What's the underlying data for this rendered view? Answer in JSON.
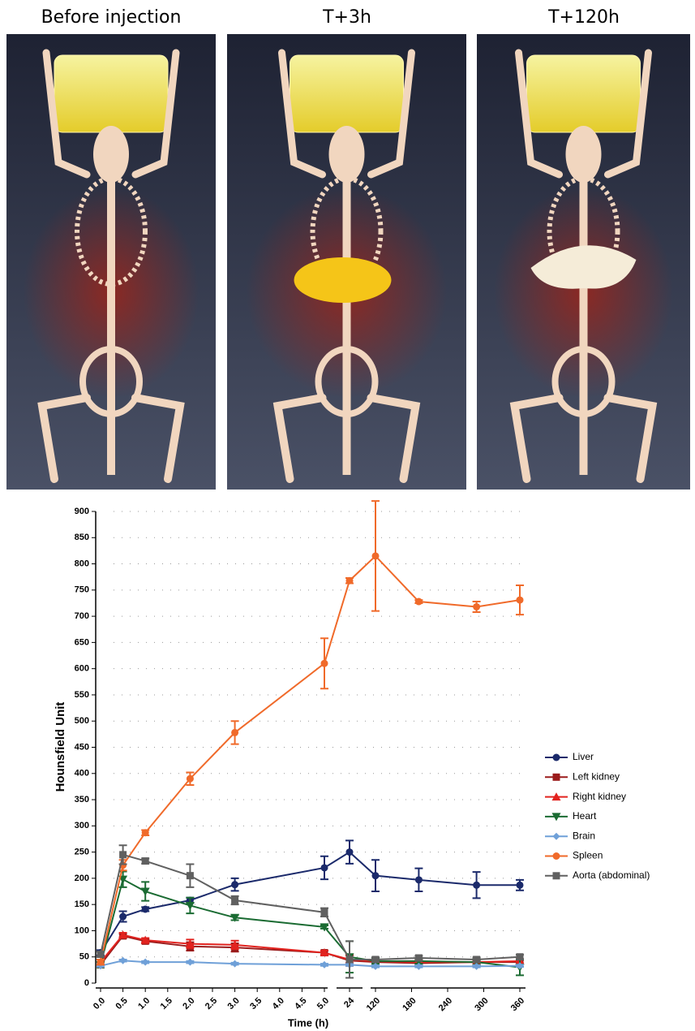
{
  "images": [
    {
      "title": "Before injection"
    },
    {
      "title": "T+3h"
    },
    {
      "title": "T+120h"
    }
  ],
  "chart_data": {
    "type": "line",
    "y_label": "Hounsfield Unit",
    "x_label": "Time (h)",
    "ylim": [
      0,
      900
    ],
    "yticks": [
      0,
      50,
      100,
      150,
      200,
      250,
      300,
      350,
      400,
      450,
      500,
      550,
      600,
      650,
      700,
      750,
      800,
      850,
      900
    ],
    "grid": true,
    "legend": "right",
    "x_segments": [
      {
        "xlim": [
          0,
          5
        ],
        "xticks": [
          {
            "value": 0,
            "label": "0.0"
          },
          {
            "value": 0.5,
            "label": "0.5"
          },
          {
            "value": 1,
            "label": "1.0"
          },
          {
            "value": 1.5,
            "label": "1.5"
          },
          {
            "value": 2,
            "label": "2.0"
          },
          {
            "value": 2.5,
            "label": "2.5"
          },
          {
            "value": 3,
            "label": "3.0"
          },
          {
            "value": 3.5,
            "label": "3.5"
          },
          {
            "value": 4,
            "label": "4.0"
          },
          {
            "value": 4.5,
            "label": "4.5"
          },
          {
            "value": 5,
            "label": "5.0"
          }
        ]
      },
      {
        "xlim": [
          22,
          26
        ],
        "xticks": [
          24
        ]
      },
      {
        "xlim": [
          120,
          360
        ],
        "xticks": [
          120,
          180,
          240,
          300,
          360
        ]
      }
    ],
    "x": [
      0,
      0.5,
      1,
      2,
      3,
      5,
      24,
      120,
      192,
      288,
      360
    ],
    "series": [
      {
        "name": "Liver",
        "color": "#1b2a6b",
        "marker": "circle",
        "values": [
          58,
          127,
          141,
          158,
          188,
          220,
          250,
          205,
          197,
          187,
          187
        ],
        "errors": [
          5,
          10,
          4,
          5,
          12,
          22,
          22,
          30,
          22,
          25,
          10
        ]
      },
      {
        "name": "Left kidney",
        "color": "#9b1c1c",
        "marker": "square",
        "values": [
          35,
          90,
          80,
          70,
          68,
          58,
          43,
          40,
          38,
          40,
          40
        ],
        "errors": [
          5,
          4,
          4,
          8,
          8,
          4,
          10,
          4,
          4,
          4,
          4
        ]
      },
      {
        "name": "Right kidney",
        "color": "#e2231f",
        "marker": "triangle-up",
        "values": [
          40,
          92,
          82,
          75,
          73,
          58,
          45,
          42,
          40,
          40,
          42
        ],
        "errors": [
          5,
          4,
          4,
          8,
          8,
          4,
          10,
          4,
          4,
          4,
          4
        ]
      },
      {
        "name": "Heart",
        "color": "#1a6b32",
        "marker": "triangle-down",
        "values": [
          35,
          198,
          175,
          148,
          125,
          107,
          50,
          42,
          42,
          40,
          30
        ],
        "errors": [
          5,
          15,
          18,
          15,
          5,
          3,
          30,
          5,
          5,
          5,
          15
        ]
      },
      {
        "name": "Brain",
        "color": "#6fa0d8",
        "marker": "diamond",
        "values": [
          33,
          43,
          40,
          40,
          37,
          35,
          35,
          32,
          32,
          32,
          33
        ],
        "errors": [
          2,
          2,
          2,
          2,
          2,
          2,
          2,
          2,
          2,
          2,
          2
        ]
      },
      {
        "name": "Spleen",
        "color": "#f06a2a",
        "marker": "circle",
        "values": [
          40,
          225,
          287,
          390,
          478,
          610,
          768,
          815,
          728,
          718,
          731
        ],
        "errors": [
          5,
          10,
          5,
          12,
          22,
          48,
          5,
          105,
          3,
          10,
          28
        ]
      },
      {
        "name": "Aorta (abdominal)",
        "color": "#606060",
        "marker": "square",
        "values": [
          55,
          245,
          233,
          205,
          158,
          135,
          45,
          45,
          48,
          45,
          50
        ],
        "errors": [
          5,
          18,
          5,
          22,
          8,
          8,
          35,
          4,
          4,
          4,
          4
        ]
      }
    ]
  }
}
